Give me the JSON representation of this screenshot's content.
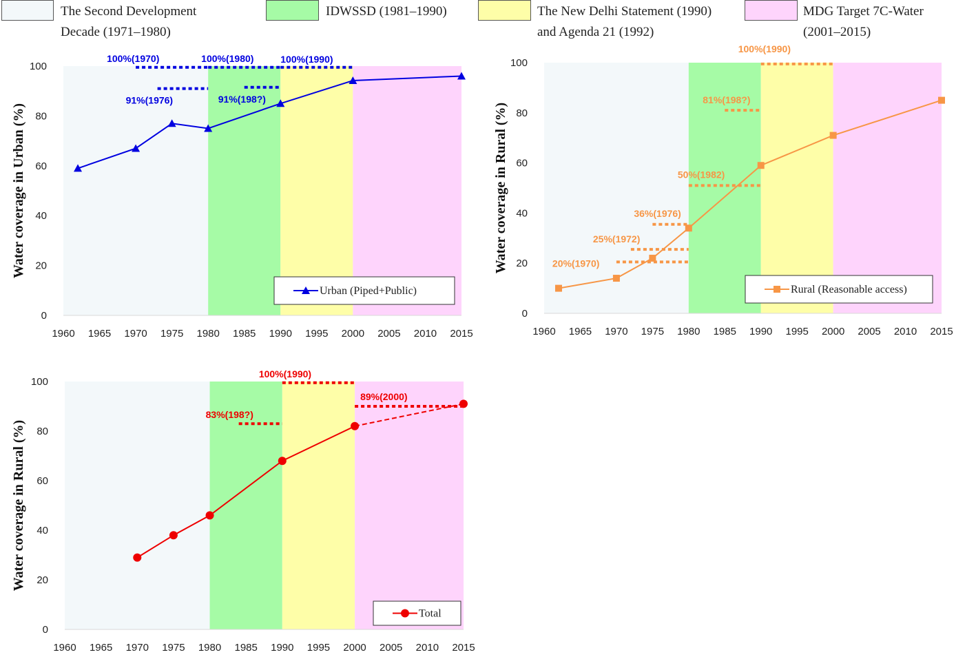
{
  "periods": [
    {
      "label_line1": "The Second Development",
      "label_line2": "Decade (1971–1980)",
      "color": "#f3f8fa",
      "from": 1960,
      "to": 1980
    },
    {
      "label_line1": "IDWSSD (1981–1990)",
      "label_line2": "",
      "color": "#a6fba6",
      "from": 1980,
      "to": 1990
    },
    {
      "label_line1": "The New Delhi Statement (1990)",
      "label_line2": "and Agenda 21 (1992)",
      "color": "#fefea8",
      "from": 1990,
      "to": 2000
    },
    {
      "label_line1": "MDG Target 7C-Water",
      "label_line2": "(2001–2015)",
      "color": "#fed4fc",
      "from": 2000,
      "to": 2015
    }
  ],
  "chart_data": [
    {
      "type": "line",
      "ylabel": "Water coverage in Urban (%)",
      "xlim": [
        1960,
        2015
      ],
      "ylim": [
        0,
        100
      ],
      "xticks": [
        1960,
        1965,
        1970,
        1975,
        1980,
        1985,
        1990,
        1995,
        2000,
        2005,
        2010,
        2015
      ],
      "yticks": [
        0,
        20,
        40,
        60,
        80,
        100
      ],
      "color": "#0000e0",
      "marker": "triangle",
      "series": [
        {
          "name": "Urban (Piped+Public)",
          "points": [
            [
              1962,
              59
            ],
            [
              1970,
              67
            ],
            [
              1975,
              77
            ],
            [
              1980,
              75
            ],
            [
              1990,
              85
            ],
            [
              2000,
              94.2
            ],
            [
              2015,
              96
            ]
          ]
        }
      ],
      "projection": [],
      "targets": [
        {
          "label": "100%(1970)",
          "value": 99.5,
          "from": 1970,
          "to": 1980
        },
        {
          "label": "100%(1980)",
          "value": 99.5,
          "from": 1980,
          "to": 1990
        },
        {
          "label": "100%(1990)",
          "value": 99.5,
          "from": 1990,
          "to": 2000
        },
        {
          "label": "91%(1976)",
          "value": 91,
          "from": 1973,
          "to": 1980
        },
        {
          "label": "91%(198?)",
          "value": 91.5,
          "from": 1985,
          "to": 1990
        }
      ]
    },
    {
      "type": "line",
      "ylabel": "Water coverage in Rural (%)",
      "xlim": [
        1960,
        2015
      ],
      "ylim": [
        0,
        100
      ],
      "xticks": [
        1960,
        1965,
        1970,
        1975,
        1980,
        1985,
        1990,
        1995,
        2000,
        2005,
        2010,
        2015
      ],
      "yticks": [
        0,
        20,
        40,
        60,
        80,
        100
      ],
      "color": "#f79646",
      "marker": "square",
      "series": [
        {
          "name": "Rural (Reasonable access)",
          "points": [
            [
              1962,
              10
            ],
            [
              1970,
              14
            ],
            [
              1975,
              22
            ],
            [
              1980,
              34
            ],
            [
              1990,
              59
            ],
            [
              2000,
              71
            ],
            [
              2015,
              85
            ]
          ]
        }
      ],
      "projection": [],
      "targets": [
        {
          "label": "100%(1990)",
          "value": 99.5,
          "from": 1990,
          "to": 2000
        },
        {
          "label": "81%(198?)",
          "value": 81,
          "from": 1985,
          "to": 1990
        },
        {
          "label": "50%(1982)",
          "value": 51,
          "from": 1980,
          "to": 1990
        },
        {
          "label": "36%(1976)",
          "value": 35.5,
          "from": 1975,
          "to": 1980
        },
        {
          "label": "25%(1972)",
          "value": 25.5,
          "from": 1972,
          "to": 1980
        },
        {
          "label": "20%(1970)",
          "value": 20.5,
          "from": 1970,
          "to": 1980
        }
      ]
    },
    {
      "type": "line",
      "ylabel": "Water coverage in Rural (%)",
      "xlim": [
        1960,
        2015
      ],
      "ylim": [
        0,
        100
      ],
      "xticks": [
        1960,
        1965,
        1970,
        1975,
        1980,
        1985,
        1990,
        1995,
        2000,
        2005,
        2010,
        2015
      ],
      "yticks": [
        0,
        20,
        40,
        60,
        80,
        100
      ],
      "color": "#ee0000",
      "marker": "circle",
      "series": [
        {
          "name": "Total",
          "points": [
            [
              1970,
              29
            ],
            [
              1975,
              38
            ],
            [
              1980,
              46
            ],
            [
              1990,
              68
            ],
            [
              2000,
              82
            ]
          ]
        }
      ],
      "projection": [
        [
          2000,
          82
        ],
        [
          2015,
          91
        ]
      ],
      "projection_end_marker": true,
      "targets": [
        {
          "label": "100%(1990)",
          "value": 99.5,
          "from": 1990,
          "to": 2000
        },
        {
          "label": "89%(2000)",
          "value": 90,
          "from": 2000,
          "to": 2015
        },
        {
          "label": "83%(198?)",
          "value": 83,
          "from": 1984,
          "to": 1990
        }
      ]
    }
  ]
}
